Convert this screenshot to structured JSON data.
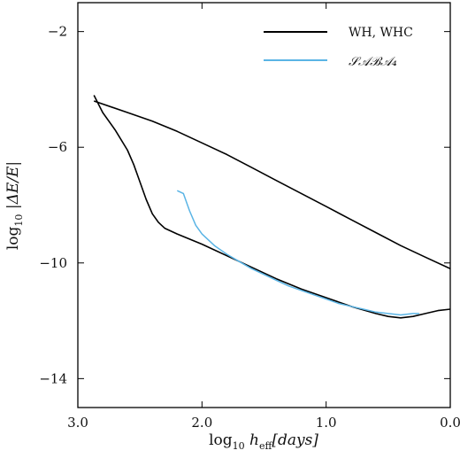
{
  "chart_data": {
    "type": "line",
    "title": "",
    "xlabel_parts": {
      "prefix": "log",
      "sub": "10",
      "var": " h",
      "var_sub": "eff",
      "unit": "[days]"
    },
    "ylabel_parts": {
      "prefix": "log",
      "sub": "10",
      "body": " |ΔE/E|"
    },
    "xlim": [
      3.0,
      0.0
    ],
    "ylim": [
      -15.0,
      -1.0
    ],
    "x_reversed": true,
    "xticks": [
      3.0,
      2.0,
      1.0,
      0.0
    ],
    "xtick_labels": [
      "3.0",
      "2.0",
      "1.0",
      "0.0"
    ],
    "yticks": [
      -2,
      -6,
      -10,
      -14
    ],
    "ytick_labels": [
      "−2",
      "−6",
      "−10",
      "−14"
    ],
    "legend_placement": "top-right",
    "grid": false,
    "series": [
      {
        "name": "WH, WHC",
        "color": "#000000",
        "lines": [
          {
            "x": [
              2.87,
              2.6,
              2.4,
              2.2,
              2.0,
              1.8,
              1.6,
              1.4,
              1.2,
              1.0,
              0.8,
              0.6,
              0.4,
              0.2,
              0.0
            ],
            "y": [
              -4.4,
              -4.8,
              -5.1,
              -5.45,
              -5.85,
              -6.25,
              -6.7,
              -7.15,
              -7.6,
              -8.05,
              -8.5,
              -8.95,
              -9.4,
              -9.8,
              -10.2
            ]
          },
          {
            "x": [
              2.87,
              2.8,
              2.7,
              2.6,
              2.55,
              2.5,
              2.45,
              2.4,
              2.35,
              2.3,
              2.2,
              2.0,
              1.8,
              1.6,
              1.4,
              1.2,
              1.0,
              0.8,
              0.6,
              0.5,
              0.4,
              0.3,
              0.2,
              0.1,
              0.0
            ],
            "y": [
              -4.2,
              -4.8,
              -5.4,
              -6.1,
              -6.6,
              -7.2,
              -7.8,
              -8.3,
              -8.6,
              -8.8,
              -9.0,
              -9.35,
              -9.75,
              -10.15,
              -10.55,
              -10.9,
              -11.2,
              -11.5,
              -11.75,
              -11.85,
              -11.9,
              -11.85,
              -11.75,
              -11.65,
              -11.6
            ]
          }
        ]
      },
      {
        "name": "𝒮𝒜ℬ𝒜₄",
        "color": "#5ab4e5",
        "lines": [
          {
            "x": [
              2.2,
              2.15,
              2.1,
              2.05,
              2.0,
              1.9,
              1.8,
              1.7,
              1.6,
              1.5,
              1.4,
              1.3,
              1.2,
              1.1,
              1.0,
              0.9,
              0.8,
              0.7,
              0.6,
              0.5,
              0.4,
              0.3,
              0.25
            ],
            "y": [
              -7.5,
              -7.6,
              -8.2,
              -8.7,
              -9.0,
              -9.4,
              -9.7,
              -9.95,
              -10.2,
              -10.4,
              -10.6,
              -10.8,
              -10.95,
              -11.1,
              -11.25,
              -11.4,
              -11.5,
              -11.6,
              -11.7,
              -11.75,
              -11.8,
              -11.75,
              -11.75
            ]
          }
        ]
      }
    ],
    "legend": [
      {
        "label": "WH, WHC",
        "color": "#000000"
      },
      {
        "label": "𝒮𝒜ℬ𝒜₄",
        "color": "#5ab4e5"
      }
    ]
  }
}
